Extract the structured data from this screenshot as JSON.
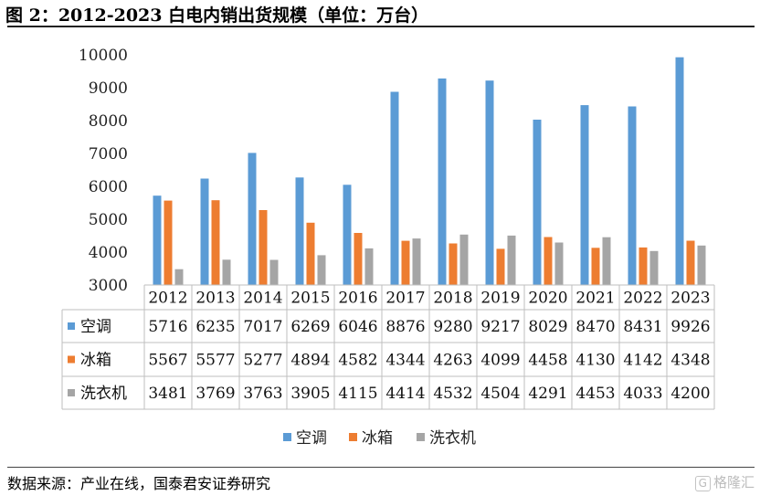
{
  "title": "图 2：2012-2023 白电内销出货规模（单位：万台）",
  "source": "数据来源：产业在线，国泰君安证券研究",
  "brand": {
    "mark": "G",
    "text": "格隆汇"
  },
  "chart_data": {
    "type": "bar",
    "categories": [
      "2012",
      "2013",
      "2014",
      "2015",
      "2016",
      "2017",
      "2018",
      "2019",
      "2020",
      "2021",
      "2022",
      "2023"
    ],
    "series": [
      {
        "name": "空调",
        "color": "#5b9bd5",
        "values": [
          5716,
          6235,
          7017,
          6269,
          6046,
          8876,
          9280,
          9217,
          8029,
          8470,
          8431,
          9926
        ]
      },
      {
        "name": "冰箱",
        "color": "#ed7d31",
        "values": [
          5567,
          5577,
          5277,
          4894,
          4582,
          4344,
          4263,
          4099,
          4458,
          4130,
          4142,
          4348
        ]
      },
      {
        "name": "洗衣机",
        "color": "#a5a5a5",
        "values": [
          3481,
          3769,
          3763,
          3905,
          4115,
          4414,
          4532,
          4504,
          4291,
          4453,
          4033,
          4200
        ]
      }
    ],
    "ylim": [
      3000,
      10000
    ],
    "yticks": [
      3000,
      4000,
      5000,
      6000,
      7000,
      8000,
      9000,
      10000
    ],
    "grid": false,
    "data_table": true,
    "legend": "bottom"
  }
}
